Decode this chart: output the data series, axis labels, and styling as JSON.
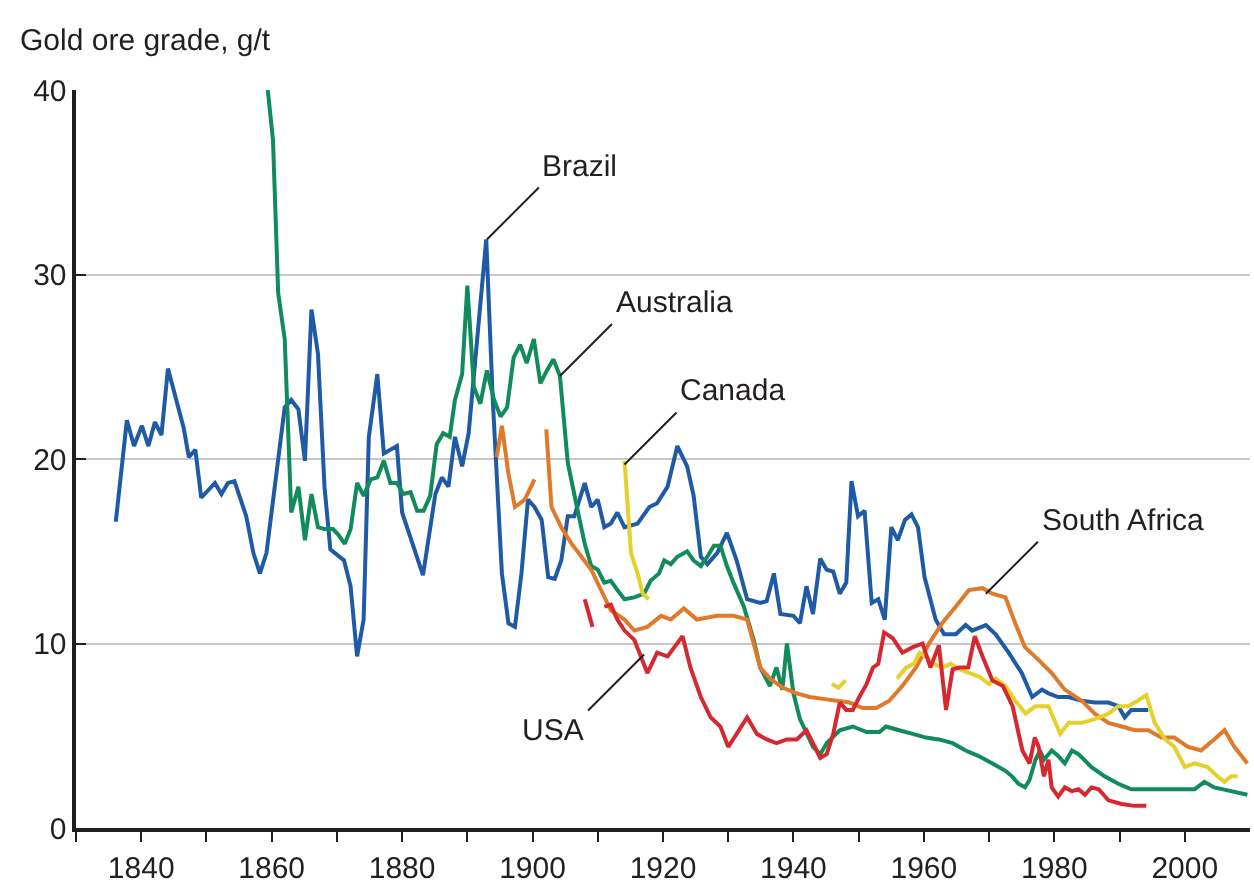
{
  "chart_data": {
    "type": "line",
    "ylabel": "Gold ore grade, g/t",
    "xlim": [
      1830,
      2010
    ],
    "ylim": [
      0,
      40
    ],
    "xticks": [
      {
        "value": 1830,
        "label": null
      },
      1840,
      {
        "value": 1850,
        "label": null
      },
      1860,
      {
        "value": 1870,
        "label": null
      },
      1880,
      {
        "value": 1890,
        "label": null
      },
      1900,
      {
        "value": 1910,
        "label": null
      },
      1920,
      {
        "value": 1930,
        "label": null
      },
      1940,
      {
        "value": 1950,
        "label": null
      },
      1960,
      {
        "value": 1970,
        "label": null
      },
      1980,
      {
        "value": 1990,
        "label": null
      },
      2000
    ],
    "yticks": [
      0,
      10,
      20,
      30,
      40
    ],
    "grid": "y",
    "legend": false,
    "marker": "none",
    "line_style": "solid",
    "series": [
      {
        "color": "#1f5aa6",
        "x": [
          1836.1,
          1837.8,
          1838.9,
          1840.1,
          1841.1,
          1842.1,
          1843.1,
          1844.1,
          1846.5,
          1847.3,
          1848.3,
          1849.2,
          1851.3,
          1852.3,
          1853.3,
          1854.3,
          1856.1,
          1857.2,
          1858.2,
          1859.2,
          1862,
          1863,
          1864.1,
          1865.1,
          1866.1,
          1867.1,
          1868.1,
          1869,
          1871.1,
          1872.1,
          1873.1,
          1874.1,
          1874.9,
          1876.2,
          1877.2,
          1879.2,
          1880,
          1883.2,
          1885.1,
          1886.1,
          1887.1,
          1888.1,
          1889.2,
          1890.2,
          1892.9,
          1893.9,
          1895.3,
          1896.3,
          1897.3,
          1898.3,
          1899.3,
          1900.3,
          1901.4,
          1902.4,
          1903.4,
          1904.4,
          1905.4,
          1906.4,
          1908,
          1909,
          1910,
          1911,
          1912,
          1913,
          1914.1,
          1916.1,
          1917.9,
          1919.1,
          1920.7,
          1922.2,
          1923.7,
          1924.7,
          1925.8,
          1926.8,
          1928.3,
          1929.8,
          1931.3,
          1932.9,
          1934.9,
          1935.9,
          1937,
          1938,
          1940,
          1941,
          1942,
          1943,
          1944.1,
          1945.1,
          1946.1,
          1947.1,
          1948.1,
          1948.9,
          1949.9,
          1950.9,
          1952,
          1953,
          1954,
          1955,
          1956,
          1957.1,
          1958.1,
          1959.1,
          1960.1,
          1961.8,
          1963.1,
          1964.9,
          1966.4,
          1967.4,
          1969.5,
          1971,
          1973,
          1975,
          1976.6,
          1978.1,
          1979.1,
          1980.6,
          1982.2,
          1984.2,
          1986.2,
          1988.3,
          1989.8,
          1990.8,
          1991.8,
          1994.4
        ],
        "values": [
          16.6,
          22.1,
          20.7,
          21.8,
          20.7,
          22,
          21.3,
          24.9,
          21.7,
          20.1,
          20.5,
          17.9,
          18.7,
          18.1,
          18.7,
          18.8,
          16.9,
          14.9,
          13.8,
          14.9,
          22.8,
          23.2,
          22.7,
          19.9,
          28.1,
          25.7,
          18.5,
          15.1,
          14.5,
          13.1,
          9.3,
          11.3,
          21.2,
          24.6,
          20.3,
          20.7,
          17.1,
          13.7,
          18.1,
          19,
          18.5,
          21.2,
          19.6,
          21.4,
          31.9,
          23.2,
          13.8,
          11.1,
          10.9,
          13.8,
          17.8,
          17.4,
          16.7,
          13.6,
          13.5,
          14.5,
          16.9,
          16.9,
          18.7,
          17.4,
          17.8,
          16.3,
          16.5,
          17.1,
          16.3,
          16.5,
          17.4,
          17.6,
          18.5,
          20.7,
          19.6,
          18,
          14.7,
          14.3,
          14.9,
          16,
          14.5,
          12.4,
          12.2,
          12.3,
          13.8,
          11.6,
          11.5,
          11.1,
          13.1,
          11.6,
          14.6,
          14,
          13.9,
          12.7,
          13.3,
          18.8,
          16.9,
          17.2,
          12.2,
          12.4,
          11.3,
          16.3,
          15.6,
          16.7,
          17,
          16.3,
          13.6,
          11.3,
          10.5,
          10.5,
          11,
          10.7,
          11,
          10.5,
          9.5,
          8.4,
          7.1,
          7.5,
          7.3,
          7.1,
          7.1,
          6.9,
          6.8,
          6.8,
          6.6,
          6,
          6.4,
          6.4
        ]
      },
      {
        "color": "#118a5c",
        "x": [
          1859.4,
          1860.2,
          1861,
          1862,
          1863,
          1864.1,
          1865.1,
          1866.1,
          1867.1,
          1868.1,
          1869.4,
          1870.2,
          1871.2,
          1872.1,
          1873.1,
          1874.1,
          1875.2,
          1876.2,
          1877.2,
          1878.2,
          1879.2,
          1880.2,
          1881.3,
          1882.3,
          1883.3,
          1884.3,
          1885.3,
          1886.3,
          1887.3,
          1888.1,
          1889.2,
          1890,
          1891,
          1892,
          1893,
          1894.1,
          1895.1,
          1896.1,
          1897.1,
          1898.1,
          1899.1,
          1900.2,
          1901.2,
          1902.2,
          1903.2,
          1904.2,
          1905.4,
          1906.8,
          1908,
          1909,
          1910,
          1911,
          1912,
          1913,
          1914.1,
          1915.6,
          1917.1,
          1918.1,
          1919.4,
          1920.2,
          1921.2,
          1922.2,
          1923.7,
          1924.7,
          1925.8,
          1926.8,
          1927.8,
          1928.8,
          1929.8,
          1930.8,
          1932.4,
          1933.9,
          1934.9,
          1936.4,
          1937.4,
          1938.3,
          1939,
          1940,
          1941,
          1943,
          1944.1,
          1945.1,
          1947.1,
          1949.1,
          1951.2,
          1953.2,
          1954.2,
          1956.2,
          1958.3,
          1960.3,
          1962.3,
          1964.4,
          1966.4,
          1968.4,
          1970.5,
          1972.5,
          1973.5,
          1974.5,
          1975.5,
          1976.2,
          1977.1,
          1977.8,
          1978.4,
          1979.6,
          1980.6,
          1981.6,
          1982.7,
          1983.7,
          1985.7,
          1987.7,
          1989.8,
          1991.8,
          1994.4,
          1997.4,
          2001.5,
          2003,
          2004.5,
          2007.1,
          2009.6
        ],
        "values": [
          40,
          37.3,
          29,
          26.5,
          17.1,
          18.5,
          15.6,
          18.1,
          16.3,
          16.2,
          16.2,
          15.9,
          15.4,
          16.2,
          18.7,
          18,
          18.9,
          19,
          19.9,
          18.7,
          18.7,
          18.1,
          18.2,
          17.2,
          17.2,
          18,
          20.8,
          21.4,
          21.2,
          23.2,
          24.6,
          29.4,
          23.9,
          23,
          24.8,
          23.2,
          22.3,
          22.8,
          25.5,
          26.2,
          25.2,
          26.5,
          24.1,
          24.8,
          25.4,
          24.5,
          19.8,
          17.4,
          15.4,
          14.2,
          14,
          13.3,
          13.4,
          12.9,
          12.4,
          12.5,
          12.7,
          13.4,
          13.8,
          14.5,
          14.3,
          14.7,
          15,
          14.5,
          14.2,
          14.7,
          15.3,
          15.3,
          14.2,
          13.3,
          12,
          10.2,
          8.7,
          7.7,
          8.7,
          7.5,
          10,
          7.3,
          5.9,
          4.4,
          4,
          4.6,
          5.3,
          5.5,
          5.2,
          5.2,
          5.5,
          5.3,
          5.1,
          4.9,
          4.8,
          4.6,
          4.2,
          3.9,
          3.5,
          3.1,
          2.8,
          2.4,
          2.2,
          2.6,
          3.7,
          4.2,
          3.7,
          4.2,
          3.9,
          3.5,
          4.2,
          4,
          3.3,
          2.8,
          2.4,
          2.1,
          2.1,
          2.1,
          2.1,
          2.5,
          2.2,
          2,
          1.8
        ]
      },
      {
        "color": "#e07a2b",
        "x": [
          1894.5,
          1895.3,
          1896.3,
          1897.3,
          1898.8,
          1900.3,
          1901.2,
          1902.1,
          1902.9,
          1904.4,
          1906,
          1907.5,
          1909,
          1910.5,
          1912,
          1914.1,
          1915.6,
          1917.6,
          1919.7,
          1921.2,
          1923.2,
          1925.2,
          1928.3,
          1930.8,
          1932.9,
          1933.9,
          1934.9,
          1936.4,
          1938.4,
          1940.5,
          1942.5,
          1944.5,
          1946.6,
          1948.6,
          1950.6,
          1952.7,
          1954.7,
          1956.7,
          1958.8,
          1960.8,
          1962.8,
          1964.9,
          1966.9,
          1969,
          1970.5,
          1972.5,
          1974,
          1975.5,
          1977.6,
          1979.6,
          1981.6,
          1984.2,
          1986.2,
          1988.3,
          1990.3,
          1992.3,
          1994.4,
          1996.4,
          1998.4,
          2000.5,
          2002.5,
          2004.5,
          2006.1,
          2007.6,
          2009.6
        ],
        "values": [
          20.1,
          21.8,
          19.2,
          17.4,
          17.8,
          18.9,
          null,
          21.6,
          17.4,
          16.3,
          15.4,
          14.7,
          14,
          12.9,
          11.8,
          11.3,
          10.7,
          10.9,
          11.5,
          11.3,
          11.9,
          11.3,
          11.5,
          11.5,
          11.3,
          10,
          8.7,
          8.1,
          7.6,
          7.3,
          7.1,
          7,
          6.9,
          6.8,
          6.5,
          6.5,
          6.9,
          7.7,
          8.7,
          10,
          11.1,
          12,
          12.9,
          13,
          12.7,
          12.5,
          11.1,
          9.8,
          9.1,
          8.4,
          7.5,
          6.9,
          6.2,
          5.7,
          5.5,
          5.3,
          5.3,
          4.9,
          4.9,
          4.4,
          4.2,
          4.8,
          5.3,
          4.4,
          3.5
        ]
      },
      {
        "color": "#e6d12c",
        "x": [
          1914.1,
          1914.6,
          1915.1,
          1916.1,
          1916.9,
          1917.8,
          1930,
          1945.9,
          1946.9,
          1948,
          1950,
          1955.9,
          1957.3,
          1958.5,
          1959.3,
          1960.3,
          1961.4,
          1962.9,
          1964.1,
          1965.5,
          1967,
          1968.5,
          1970,
          1971,
          1972.5,
          1974,
          1975.6,
          1977.1,
          1979.1,
          1980.9,
          1982.2,
          1984.2,
          1986.2,
          1988.3,
          1989.8,
          1991.3,
          1992.8,
          1994.1,
          1995.4,
          1997,
          1998.4,
          2000,
          2001.5,
          2003.5,
          2005,
          2006.1,
          2007.1,
          2008.1
        ],
        "values": [
          19.9,
          17.4,
          14.9,
          13.8,
          12.7,
          12.4,
          null,
          7.8,
          7.6,
          8,
          null,
          8.1,
          8.7,
          8.9,
          9.5,
          9.3,
          8.9,
          8.7,
          8.9,
          8.6,
          8.4,
          8.2,
          7.8,
          8.1,
          7.7,
          6.9,
          6.2,
          6.6,
          6.6,
          5.1,
          5.7,
          5.7,
          5.9,
          6.2,
          6.6,
          6.6,
          6.9,
          7.2,
          5.7,
          4.8,
          4.4,
          3.3,
          3.5,
          3.3,
          2.8,
          2.5,
          2.8,
          2.8
        ]
      },
      {
        "color": "#d7282f",
        "x": [
          1908,
          1909.2,
          1910.1,
          1911,
          1912,
          1913,
          1914.1,
          1915.6,
          1917.6,
          1919.1,
          1920.7,
          1923,
          1924.2,
          1925.8,
          1927.3,
          1928.8,
          1930,
          1931.3,
          1932.9,
          1934.4,
          1935.9,
          1937.4,
          1939,
          1940.5,
          1942,
          1943,
          1944.1,
          1945.1,
          1946.1,
          1947.1,
          1948.1,
          1949.1,
          1950.1,
          1951.2,
          1952.2,
          1953,
          1953.9,
          1955.2,
          1956.7,
          1958.3,
          1959.8,
          1961,
          1962.3,
          1963.4,
          1964.4,
          1965.5,
          1966.8,
          1967.8,
          1969,
          1970.5,
          1972.1,
          1973.6,
          1975.1,
          1976.2,
          1977,
          1977.6,
          1978.4,
          1979.1,
          1979.6,
          1980.6,
          1981.6,
          1982.7,
          1983.7,
          1984.7,
          1985.7,
          1986.8,
          1988.3,
          1990.3,
          1992.3,
          1994.1
        ],
        "values": [
          12.4,
          10.9,
          null,
          12,
          12.1,
          11.3,
          10.7,
          10.2,
          8.4,
          9.5,
          9.3,
          10.4,
          8.7,
          7.1,
          6,
          5.5,
          4.4,
          5.1,
          6,
          5.1,
          4.8,
          4.6,
          4.8,
          4.8,
          5.3,
          4.6,
          3.8,
          4,
          5.1,
          6.8,
          6.4,
          6.4,
          7.1,
          7.8,
          8.7,
          8.9,
          10.6,
          10.3,
          9.5,
          9.8,
          10,
          8.7,
          9.9,
          6.4,
          8.6,
          8.7,
          8.7,
          10.4,
          9.3,
          8,
          7.7,
          6.6,
          4.2,
          3.5,
          4.9,
          4.4,
          2.8,
          3.7,
          2.2,
          1.7,
          2.2,
          2,
          2.1,
          1.8,
          2.2,
          2.1,
          1.5,
          1.3,
          1.2,
          1.2
        ]
      }
    ],
    "annotations": [
      {
        "text": "Brazil",
        "x": 1893,
        "y": 31.9
      },
      {
        "text": "Australia",
        "x": 1904.2,
        "y": 24.5
      },
      {
        "text": "Canada",
        "x": 1914.1,
        "y": 19.7
      },
      {
        "text": "South Africa",
        "x": 1969.5,
        "y": 12.7
      },
      {
        "text": "USA",
        "x": 1917.1,
        "y": 9.4
      }
    ]
  }
}
